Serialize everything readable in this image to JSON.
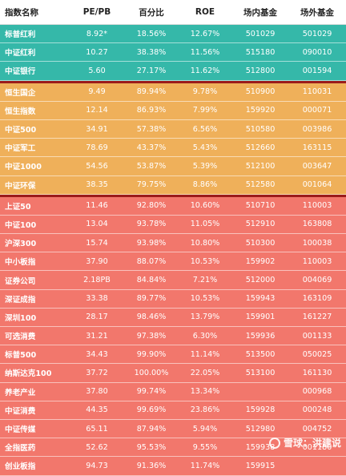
{
  "headers": [
    "指数名称",
    "PE/PB",
    "百分比",
    "ROE",
    "场内基金",
    "场外基金"
  ],
  "groups": [
    {
      "color": "#35b8a9",
      "rows": [
        [
          "标普红利",
          "8.92*",
          "18.56%",
          "12.67%",
          "501029",
          "501029"
        ],
        [
          "中证红利",
          "10.27",
          "38.38%",
          "11.56%",
          "515180",
          "090010"
        ],
        [
          "中证银行",
          "5.60",
          "27.17%",
          "11.62%",
          "512800",
          "001594"
        ]
      ]
    },
    {
      "color": "#efb05a",
      "rows": [
        [
          "恒生国企",
          "9.49",
          "89.94%",
          "9.78%",
          "510900",
          "110031"
        ],
        [
          "恒生指数",
          "12.14",
          "86.93%",
          "7.99%",
          "159920",
          "000071"
        ],
        [
          "中证500",
          "34.91",
          "57.38%",
          "6.56%",
          "510580",
          "003986"
        ],
        [
          "中证军工",
          "78.69",
          "43.37%",
          "5.43%",
          "512660",
          "163115"
        ],
        [
          "中证1000",
          "54.56",
          "53.87%",
          "5.39%",
          "512100",
          "003647"
        ],
        [
          "中证环保",
          "38.35",
          "79.75%",
          "8.86%",
          "512580",
          "001064"
        ]
      ]
    },
    {
      "color": "#f2776c",
      "rows": [
        [
          "上证50",
          "11.46",
          "92.80%",
          "10.60%",
          "510710",
          "110003"
        ],
        [
          "中证100",
          "13.04",
          "93.78%",
          "11.05%",
          "512910",
          "163808"
        ],
        [
          "沪深300",
          "15.74",
          "93.98%",
          "10.80%",
          "510300",
          "100038"
        ],
        [
          "中小板指",
          "37.90",
          "88.07%",
          "10.53%",
          "159902",
          "110003"
        ],
        [
          "证券公司",
          "2.18PB",
          "84.84%",
          "7.21%",
          "512000",
          "004069"
        ],
        [
          "深证成指",
          "33.38",
          "89.77%",
          "10.53%",
          "159943",
          "163109"
        ],
        [
          "深圳100",
          "28.17",
          "98.46%",
          "13.79%",
          "159901",
          "161227"
        ],
        [
          "可选消费",
          "31.21",
          "97.38%",
          "6.30%",
          "159936",
          "001133"
        ],
        [
          "标普500",
          "34.43",
          "99.90%",
          "11.14%",
          "513500",
          "050025"
        ],
        [
          "纳斯达克100",
          "37.72",
          "100.00%",
          "22.05%",
          "513100",
          "161130"
        ],
        [
          "养老产业",
          "37.80",
          "99.74%",
          "13.34%",
          "",
          "000968"
        ],
        [
          "中证消费",
          "44.35",
          "99.69%",
          "23.86%",
          "159928",
          "000248"
        ],
        [
          "中证传媒",
          "65.11",
          "87.94%",
          "5.94%",
          "512980",
          "004752"
        ],
        [
          "全指医药",
          "52.62",
          "95.53%",
          "9.55%",
          "159938",
          "001180"
        ],
        [
          "创业板指",
          "94.73",
          "91.36%",
          "11.74%",
          "159915",
          ""
        ]
      ]
    }
  ],
  "watermark": {
    "text": "雪球：洪建说",
    "icon": "snowball-logo-icon"
  }
}
